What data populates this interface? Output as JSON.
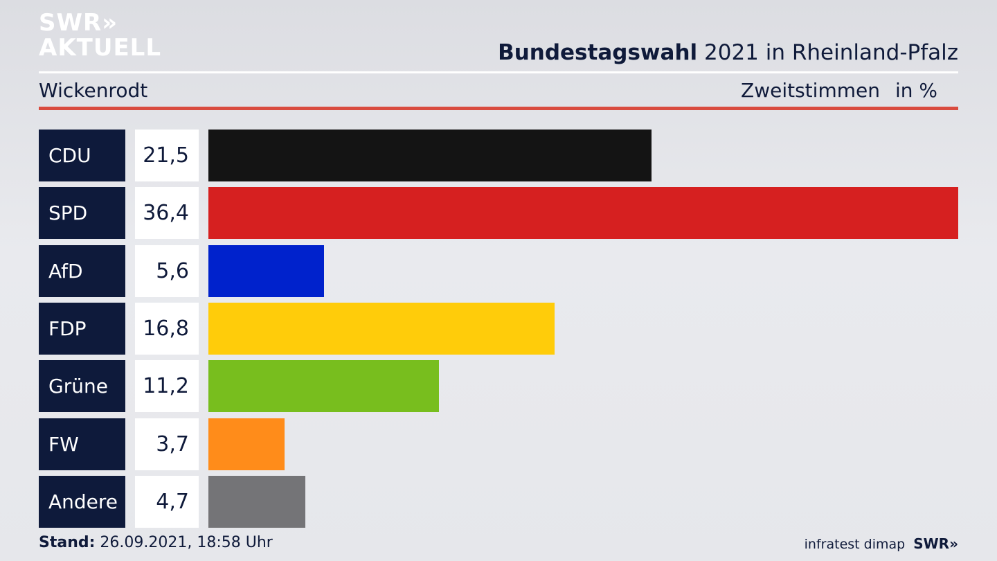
{
  "logo": {
    "line1": "SWR",
    "line1_mark": "»",
    "line2": "AKTUELL"
  },
  "header": {
    "title_bold": "Bundestagswahl",
    "title_rest": " 2021 in Rheinland-Pfalz",
    "location": "Wickenrodt",
    "measure": "Zweitstimmen",
    "unit": "in %"
  },
  "colors": {
    "background": "#e6e7eb",
    "label_bg": "#0e1a3b",
    "accent_rule": "#d94b3f",
    "text": "#0f1a3a"
  },
  "chart_data": {
    "type": "bar",
    "orientation": "horizontal",
    "categories": [
      "CDU",
      "SPD",
      "AfD",
      "FDP",
      "Grüne",
      "FW",
      "Andere"
    ],
    "values": [
      21.5,
      36.4,
      5.6,
      16.8,
      11.2,
      3.7,
      4.7
    ],
    "value_labels": [
      "21,5",
      "36,4",
      "5,6",
      "16,8",
      "11,2",
      "3,7",
      "4,7"
    ],
    "bar_colors": [
      "#141414",
      "#d62020",
      "#0022cc",
      "#ffcc0a",
      "#78be1e",
      "#ff8c1a",
      "#747477"
    ],
    "xlim": [
      0,
      36.4
    ],
    "grid": false,
    "legend": "none"
  },
  "footer": {
    "stand_label": "Stand:",
    "stand_value": " 26.09.2021, 18:58 Uhr",
    "source": "infratest dimap",
    "brand": "SWR»"
  }
}
